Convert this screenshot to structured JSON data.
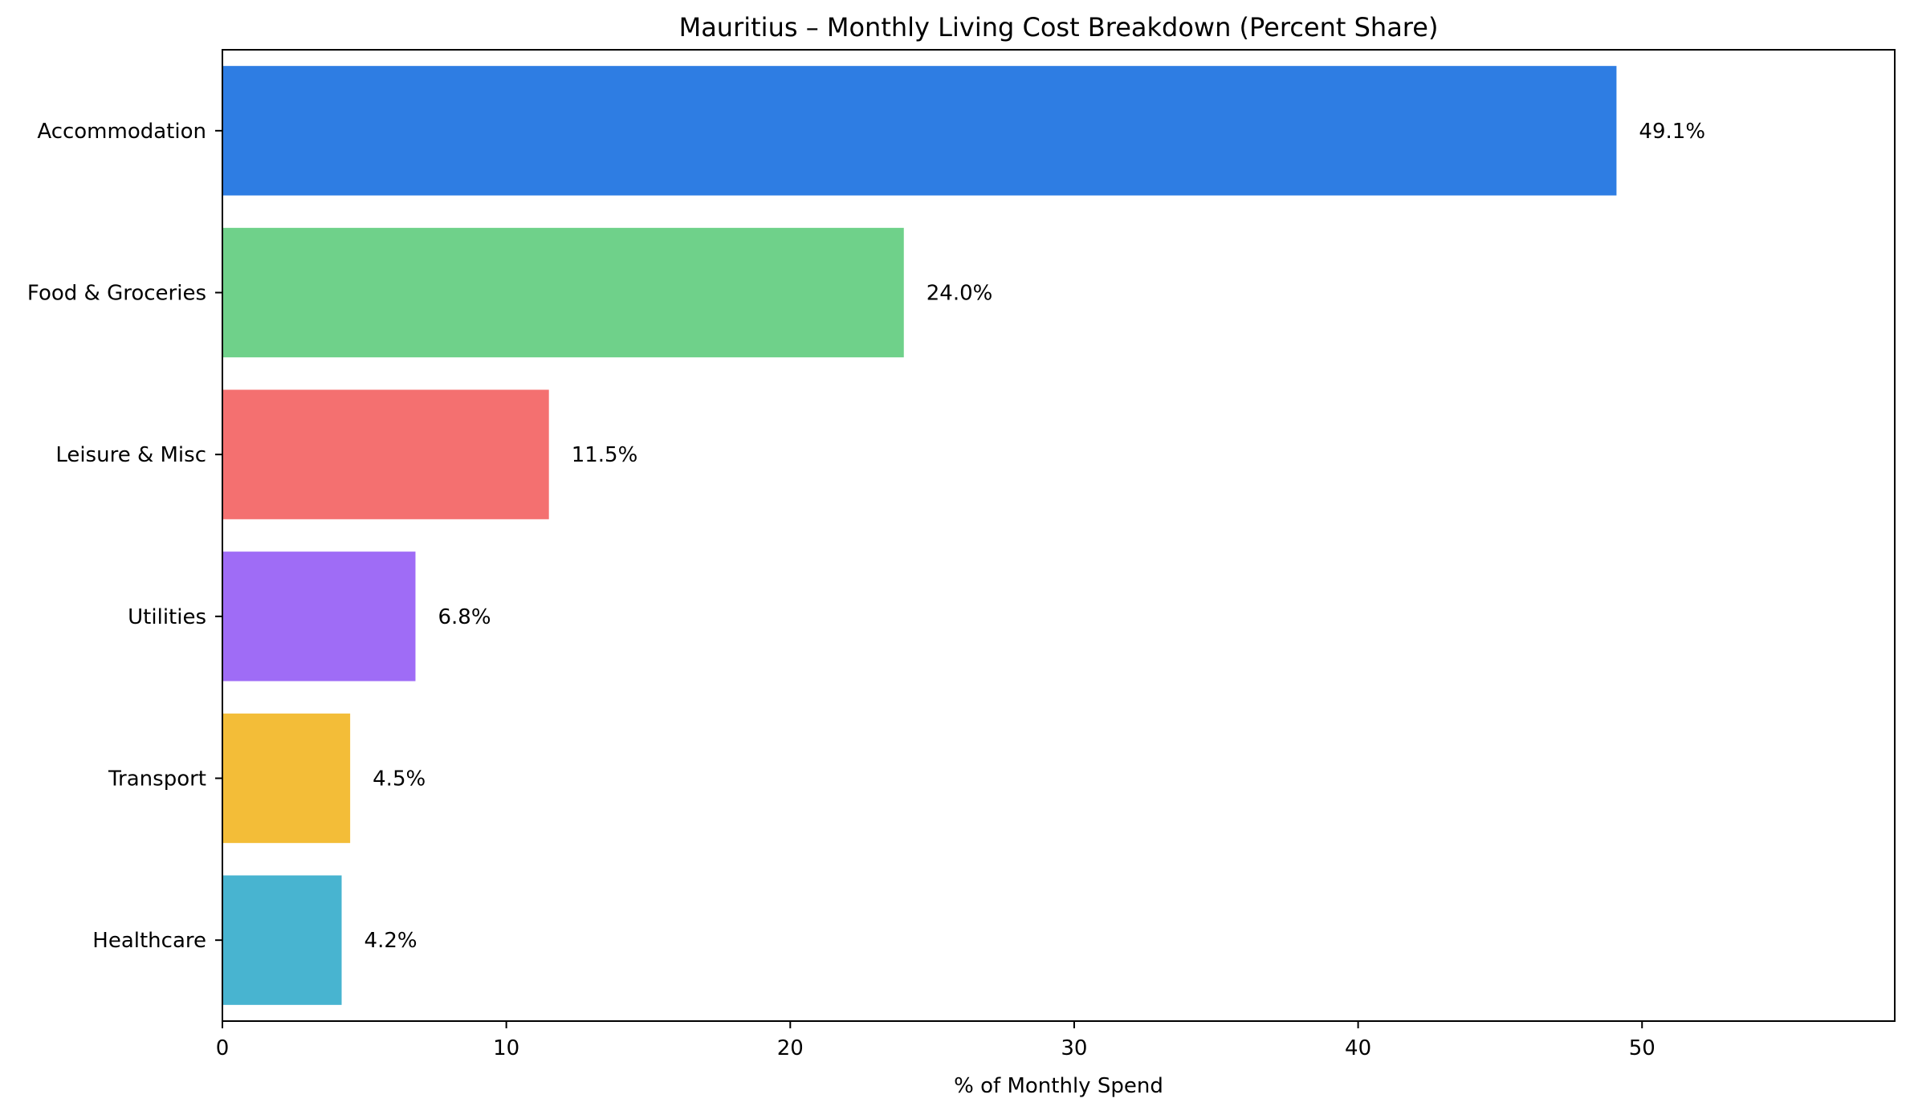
{
  "chart_data": {
    "type": "bar",
    "orientation": "horizontal",
    "title": "Mauritius – Monthly Living Cost Breakdown (Percent Share)",
    "xlabel": "% of Monthly Spend",
    "ylabel": "",
    "xlim": [
      0,
      58.9
    ],
    "xticks": [
      "0",
      "10",
      "20",
      "30",
      "40",
      "50"
    ],
    "grid": false,
    "legend": "none",
    "categories": [
      "Accommodation",
      "Food & Groceries",
      "Leisure & Misc",
      "Utilities",
      "Transport",
      "Healthcare"
    ],
    "values": [
      49.1,
      24.0,
      11.5,
      6.8,
      4.5,
      4.2
    ],
    "value_labels": [
      "49.1%",
      "24.0%",
      "11.5%",
      "6.8%",
      "4.5%",
      "4.2%"
    ],
    "colors": [
      "#2e7de3",
      "#6fd18a",
      "#f47070",
      "#9f6cf6",
      "#f3bd38",
      "#48b4d0"
    ]
  }
}
